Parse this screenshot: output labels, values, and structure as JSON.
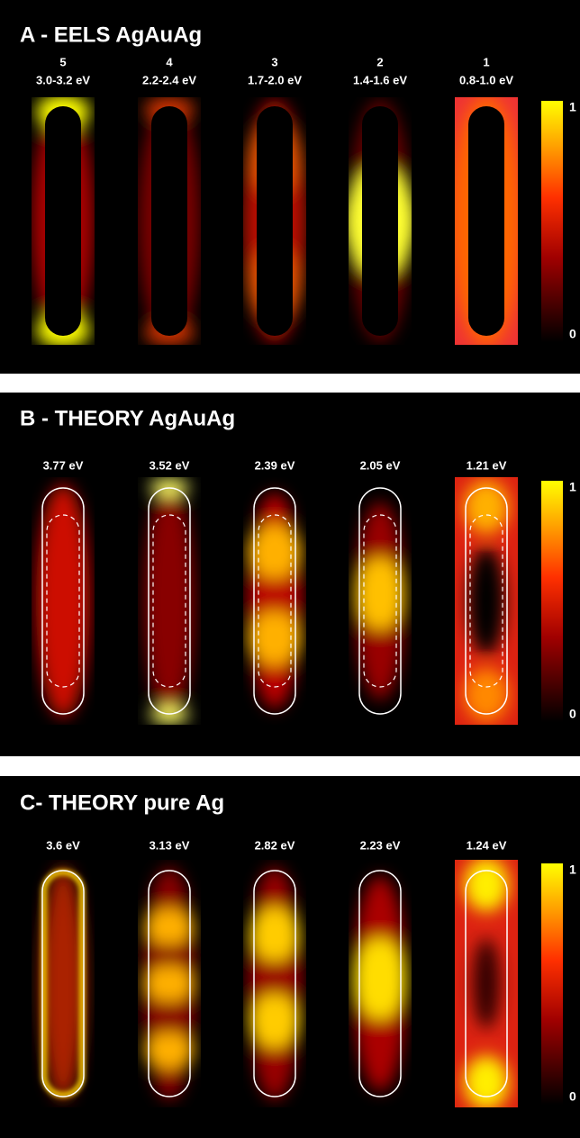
{
  "panels": [
    {
      "title": "A - EELS AgAuAg",
      "maps": [
        {
          "label": "5",
          "energy": "3.0-3.2 eV"
        },
        {
          "label": "4",
          "energy": "2.2-2.4 eV"
        },
        {
          "label": "3",
          "energy": "1.7-2.0 eV"
        },
        {
          "label": "2",
          "energy": "1.4-1.6 eV"
        },
        {
          "label": "1",
          "energy": "0.8-1.0 eV"
        }
      ],
      "colorbar": {
        "max": "1",
        "min": "0"
      }
    },
    {
      "title": "B - THEORY AgAuAg",
      "maps": [
        {
          "energy": "3.77 eV"
        },
        {
          "energy": "3.52 eV"
        },
        {
          "energy": "2.39 eV"
        },
        {
          "energy": "2.05 eV"
        },
        {
          "energy": "1.21 eV"
        }
      ],
      "colorbar": {
        "max": "1",
        "min": "0"
      }
    },
    {
      "title": "C- THEORY pure Ag",
      "maps": [
        {
          "energy": "3.6 eV"
        },
        {
          "energy": "3.13 eV"
        },
        {
          "energy": "2.82 eV"
        },
        {
          "energy": "2.23 eV"
        },
        {
          "energy": "1.24 eV"
        }
      ],
      "colorbar": {
        "max": "1",
        "min": "0"
      }
    }
  ]
}
